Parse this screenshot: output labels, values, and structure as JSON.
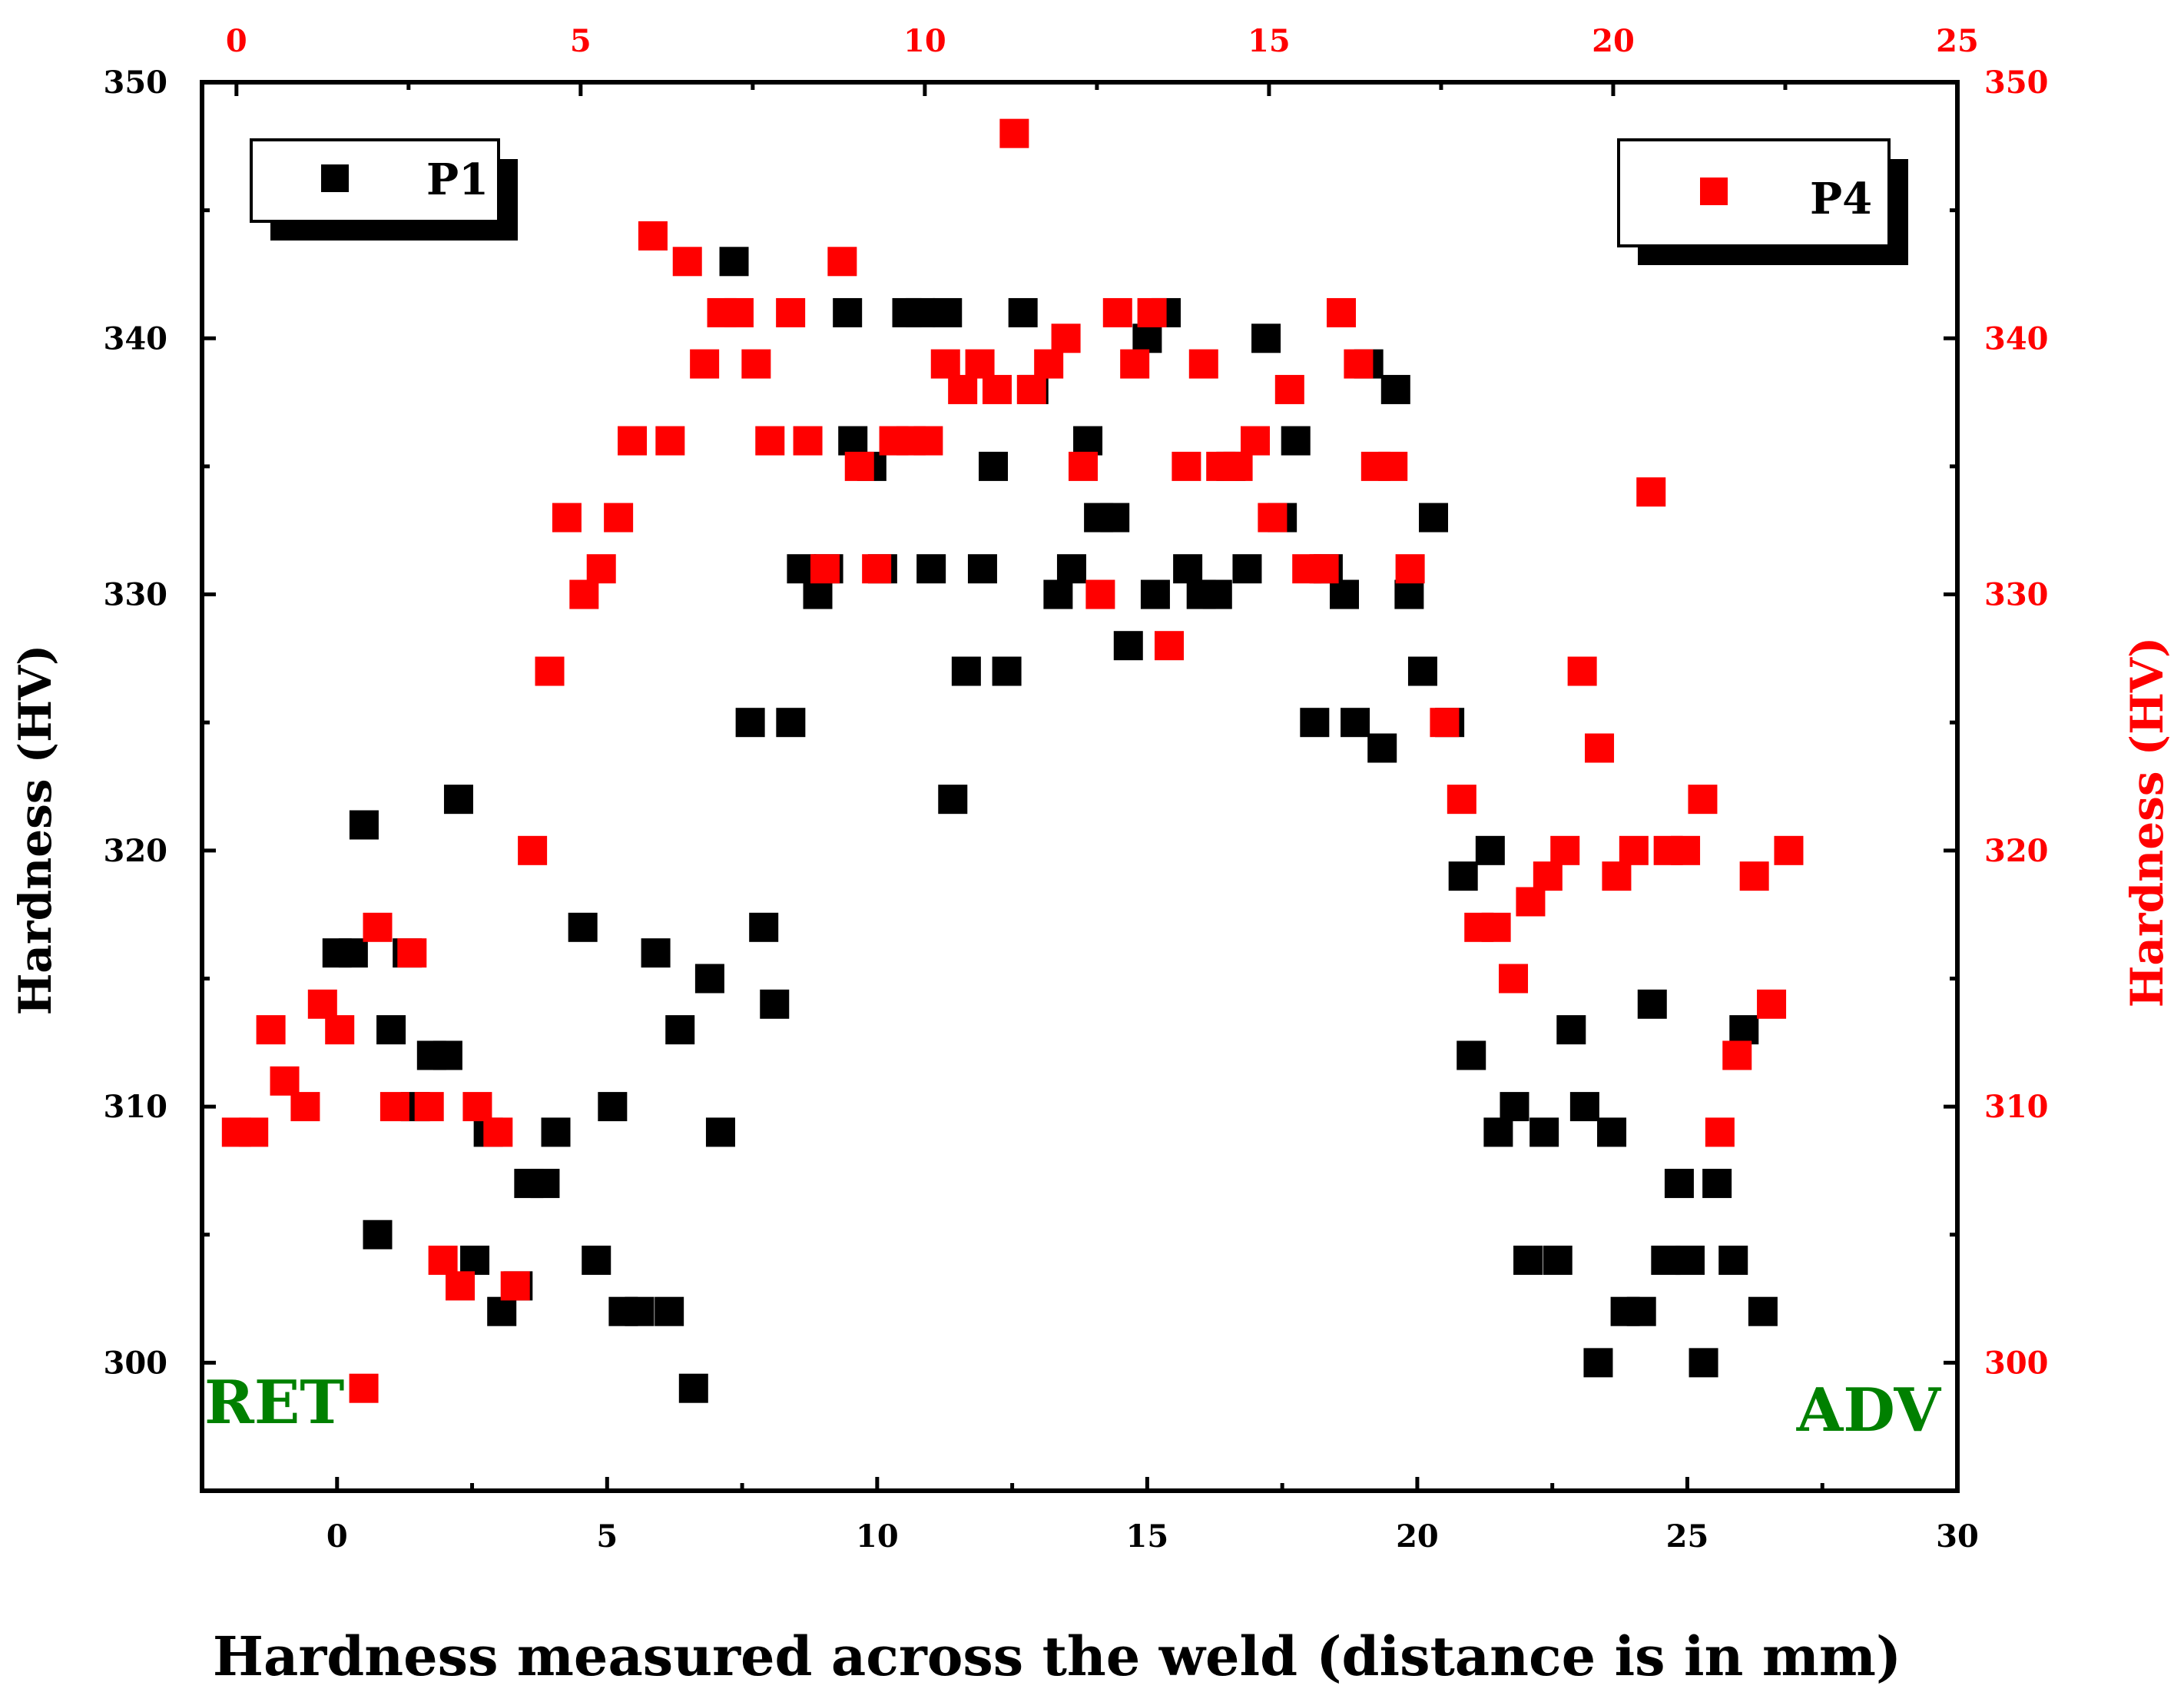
{
  "chart_data": {
    "type": "scatter",
    "xlabel": "Hardness measured across the weld (distance is in mm)",
    "ylabel_left": "Hardness (HV)",
    "ylabel_right": "Hardness (HV)",
    "annotations": {
      "left": "RET",
      "right": "ADV"
    },
    "axes": {
      "bottom": {
        "range": [
          -2.5,
          30
        ],
        "ticks": [
          0,
          5,
          10,
          15,
          20,
          25,
          30
        ],
        "color": "#000000"
      },
      "top": {
        "range": [
          -0.5,
          25
        ],
        "ticks": [
          0,
          5,
          10,
          15,
          20,
          25
        ],
        "color": "#ff0000"
      },
      "left": {
        "range": [
          295,
          350
        ],
        "ticks": [
          300,
          310,
          320,
          330,
          340,
          350
        ],
        "color": "#000000"
      },
      "right": {
        "range": [
          295,
          350
        ],
        "ticks": [
          300,
          310,
          320,
          330,
          340,
          350
        ],
        "color": "#ff0000"
      }
    },
    "grid": false,
    "legend": [
      {
        "series": "P1",
        "placement": "top-left"
      },
      {
        "series": "P4",
        "placement": "top-right"
      }
    ],
    "series": [
      {
        "name": "P1",
        "color": "#000000",
        "marker": "square",
        "x_axis": "bottom",
        "y_axis": "left",
        "points": [
          [
            0.0,
            316
          ],
          [
            0.3,
            316
          ],
          [
            0.5,
            321
          ],
          [
            0.75,
            305
          ],
          [
            1.0,
            313
          ],
          [
            1.3,
            316
          ],
          [
            1.45,
            310
          ],
          [
            1.75,
            312
          ],
          [
            2.05,
            312
          ],
          [
            2.25,
            322
          ],
          [
            2.55,
            304
          ],
          [
            2.8,
            309
          ],
          [
            3.05,
            302
          ],
          [
            3.35,
            303
          ],
          [
            3.55,
            307
          ],
          [
            3.85,
            307
          ],
          [
            4.05,
            309
          ],
          [
            4.55,
            317
          ],
          [
            4.8,
            304
          ],
          [
            5.1,
            310
          ],
          [
            5.3,
            302
          ],
          [
            5.6,
            302
          ],
          [
            5.9,
            316
          ],
          [
            6.15,
            302
          ],
          [
            6.35,
            313
          ],
          [
            6.6,
            299
          ],
          [
            6.9,
            315
          ],
          [
            7.1,
            309
          ],
          [
            7.35,
            343
          ],
          [
            7.65,
            325
          ],
          [
            7.9,
            317
          ],
          [
            8.1,
            314
          ],
          [
            8.4,
            325
          ],
          [
            8.6,
            331
          ],
          [
            8.9,
            330
          ],
          [
            9.1,
            331
          ],
          [
            9.45,
            341
          ],
          [
            9.55,
            336
          ],
          [
            9.9,
            335
          ],
          [
            10.1,
            331
          ],
          [
            10.55,
            341
          ],
          [
            10.8,
            341
          ],
          [
            11.0,
            331
          ],
          [
            11.3,
            341
          ],
          [
            11.4,
            322
          ],
          [
            11.65,
            327
          ],
          [
            11.95,
            331
          ],
          [
            12.15,
            335
          ],
          [
            12.4,
            327
          ],
          [
            12.7,
            341
          ],
          [
            12.9,
            338
          ],
          [
            13.35,
            330
          ],
          [
            13.6,
            331
          ],
          [
            13.9,
            336
          ],
          [
            14.1,
            333
          ],
          [
            14.4,
            333
          ],
          [
            14.65,
            328
          ],
          [
            15.0,
            340
          ],
          [
            15.15,
            330
          ],
          [
            15.35,
            341
          ],
          [
            15.75,
            331
          ],
          [
            16.0,
            330
          ],
          [
            16.3,
            330
          ],
          [
            16.55,
            335
          ],
          [
            16.85,
            331
          ],
          [
            17.2,
            340
          ],
          [
            17.5,
            333
          ],
          [
            17.75,
            336
          ],
          [
            18.1,
            325
          ],
          [
            18.35,
            331
          ],
          [
            18.65,
            330
          ],
          [
            18.85,
            325
          ],
          [
            19.1,
            339
          ],
          [
            19.35,
            324
          ],
          [
            19.6,
            338
          ],
          [
            19.85,
            330
          ],
          [
            20.1,
            327
          ],
          [
            20.3,
            333
          ],
          [
            20.6,
            325
          ],
          [
            20.85,
            319
          ],
          [
            21.0,
            312
          ],
          [
            21.35,
            320
          ],
          [
            21.5,
            309
          ],
          [
            21.8,
            310
          ],
          [
            22.05,
            304
          ],
          [
            22.35,
            309
          ],
          [
            22.6,
            304
          ],
          [
            22.85,
            313
          ],
          [
            23.1,
            310
          ],
          [
            23.35,
            300
          ],
          [
            23.6,
            309
          ],
          [
            23.85,
            302
          ],
          [
            24.15,
            302
          ],
          [
            24.35,
            314
          ],
          [
            24.6,
            304
          ],
          [
            24.85,
            307
          ],
          [
            25.05,
            304
          ],
          [
            25.3,
            300
          ],
          [
            25.55,
            307
          ],
          [
            25.85,
            304
          ],
          [
            26.05,
            313
          ],
          [
            26.4,
            302
          ]
        ]
      },
      {
        "name": "P4",
        "color": "#ff0000",
        "marker": "square",
        "x_axis": "top",
        "y_axis": "right",
        "points": [
          [
            0.0,
            309
          ],
          [
            0.25,
            309
          ],
          [
            0.5,
            313
          ],
          [
            0.7,
            311
          ],
          [
            1.0,
            310
          ],
          [
            1.25,
            314
          ],
          [
            1.5,
            313
          ],
          [
            1.85,
            299
          ],
          [
            2.05,
            317
          ],
          [
            2.3,
            310
          ],
          [
            2.55,
            316
          ],
          [
            2.8,
            310
          ],
          [
            3.0,
            304
          ],
          [
            3.25,
            303
          ],
          [
            3.5,
            310
          ],
          [
            3.8,
            309
          ],
          [
            4.05,
            303
          ],
          [
            4.3,
            320
          ],
          [
            4.55,
            327
          ],
          [
            4.8,
            333
          ],
          [
            5.05,
            330
          ],
          [
            5.3,
            331
          ],
          [
            5.55,
            333
          ],
          [
            5.75,
            336
          ],
          [
            6.05,
            344
          ],
          [
            6.3,
            336
          ],
          [
            6.55,
            343
          ],
          [
            6.8,
            339
          ],
          [
            7.05,
            341
          ],
          [
            7.3,
            341
          ],
          [
            7.55,
            339
          ],
          [
            7.75,
            336
          ],
          [
            8.05,
            341
          ],
          [
            8.3,
            336
          ],
          [
            8.55,
            331
          ],
          [
            8.8,
            343
          ],
          [
            9.05,
            335
          ],
          [
            9.3,
            331
          ],
          [
            9.55,
            336
          ],
          [
            9.8,
            336
          ],
          [
            10.05,
            336
          ],
          [
            10.3,
            339
          ],
          [
            10.55,
            338
          ],
          [
            10.8,
            339
          ],
          [
            11.05,
            338
          ],
          [
            11.3,
            348
          ],
          [
            11.55,
            338
          ],
          [
            11.8,
            339
          ],
          [
            12.05,
            340
          ],
          [
            12.3,
            335
          ],
          [
            12.55,
            330
          ],
          [
            12.8,
            341
          ],
          [
            13.05,
            339
          ],
          [
            13.3,
            341
          ],
          [
            13.55,
            328
          ],
          [
            13.8,
            335
          ],
          [
            14.05,
            339
          ],
          [
            14.3,
            335
          ],
          [
            14.55,
            335
          ],
          [
            14.8,
            336
          ],
          [
            15.05,
            333
          ],
          [
            15.3,
            338
          ],
          [
            15.55,
            331
          ],
          [
            15.8,
            331
          ],
          [
            16.05,
            341
          ],
          [
            16.3,
            339
          ],
          [
            16.55,
            335
          ],
          [
            16.8,
            335
          ],
          [
            17.05,
            331
          ],
          [
            17.55,
            325
          ],
          [
            17.8,
            322
          ],
          [
            18.05,
            317
          ],
          [
            18.3,
            317
          ],
          [
            18.55,
            315
          ],
          [
            18.8,
            318
          ],
          [
            19.05,
            319
          ],
          [
            19.3,
            320
          ],
          [
            19.55,
            327
          ],
          [
            19.8,
            324
          ],
          [
            20.05,
            319
          ],
          [
            20.3,
            320
          ],
          [
            20.55,
            334
          ],
          [
            20.8,
            320
          ],
          [
            21.05,
            320
          ],
          [
            21.3,
            322
          ],
          [
            21.55,
            309
          ],
          [
            21.8,
            312
          ],
          [
            22.05,
            319
          ],
          [
            22.3,
            314
          ],
          [
            22.55,
            320
          ]
        ]
      }
    ]
  },
  "axis_labels": {
    "bottom": [
      "0",
      "5",
      "10",
      "15",
      "20",
      "25",
      "30"
    ],
    "top": [
      "0",
      "5",
      "10",
      "15",
      "20",
      "25"
    ],
    "left": [
      "300",
      "310",
      "320",
      "330",
      "340",
      "350"
    ],
    "right": [
      "300",
      "310",
      "320",
      "330",
      "340",
      "350"
    ]
  }
}
